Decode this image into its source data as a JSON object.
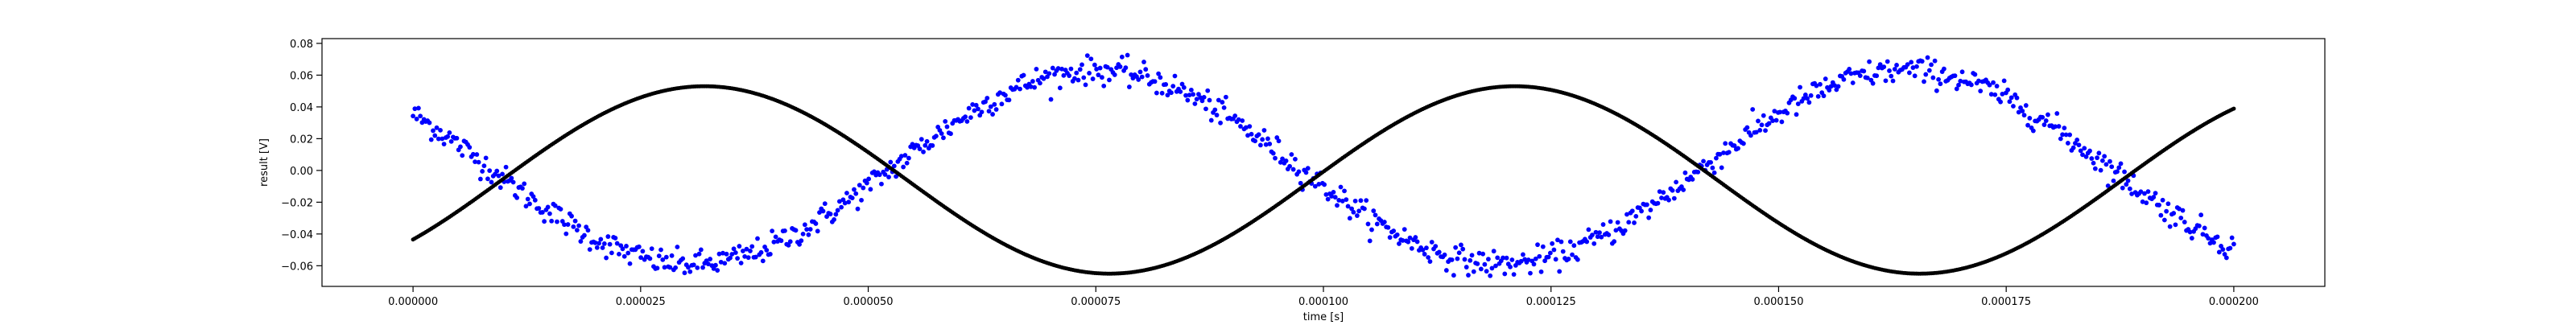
{
  "chart_data": {
    "type": "scatter",
    "title": "",
    "xlabel": "time [s]",
    "ylabel": "result [V]",
    "xlim": [
      -1e-05,
      0.00021
    ],
    "ylim": [
      -0.073,
      0.083
    ],
    "grid": false,
    "legend": "none",
    "x_ticks": [
      0,
      2.5e-05,
      5e-05,
      7.5e-05,
      0.0001,
      0.000125,
      0.00015,
      0.000175,
      0.0002
    ],
    "x_tick_labels": [
      "0.000000",
      "0.000025",
      "0.000050",
      "0.000075",
      "0.000100",
      "0.000125",
      "0.000150",
      "0.000175",
      "0.000200"
    ],
    "y_ticks": [
      -0.06,
      -0.04,
      -0.02,
      0.0,
      0.02,
      0.04,
      0.06,
      0.08
    ],
    "y_tick_labels": [
      "−0.06",
      "−0.04",
      "−0.02",
      "0.00",
      "0.02",
      "0.04",
      "0.06",
      "0.08"
    ],
    "series": [
      {
        "color": "#0000ff",
        "marker": "dot",
        "description_x_range": [
          0,
          0.0002
        ],
        "model": "noisy sinusoid",
        "amplitude": 0.061,
        "offset": 0.002,
        "period": 8.9e-05,
        "peaks_x": [
          7.5e-05,
          0.000164
        ],
        "troughs_x": [
          3.05e-05,
          0.0001195
        ],
        "start_y": 0.035,
        "end_y": -0.038,
        "n_points": 1000
      },
      {
        "color": "#000000",
        "marker": "dot",
        "description_x_range": [
          0,
          0.0002
        ],
        "model": "clean sinusoid",
        "amplitude": 0.059,
        "offset": -0.006,
        "period": 8.9e-05,
        "peaks_x": [
          3.2e-05,
          0.000121
        ],
        "troughs_x": [
          7.65e-05,
          0.0001655
        ],
        "start_y": -0.041,
        "end_y": 0.028,
        "n_points": 1000
      }
    ]
  }
}
